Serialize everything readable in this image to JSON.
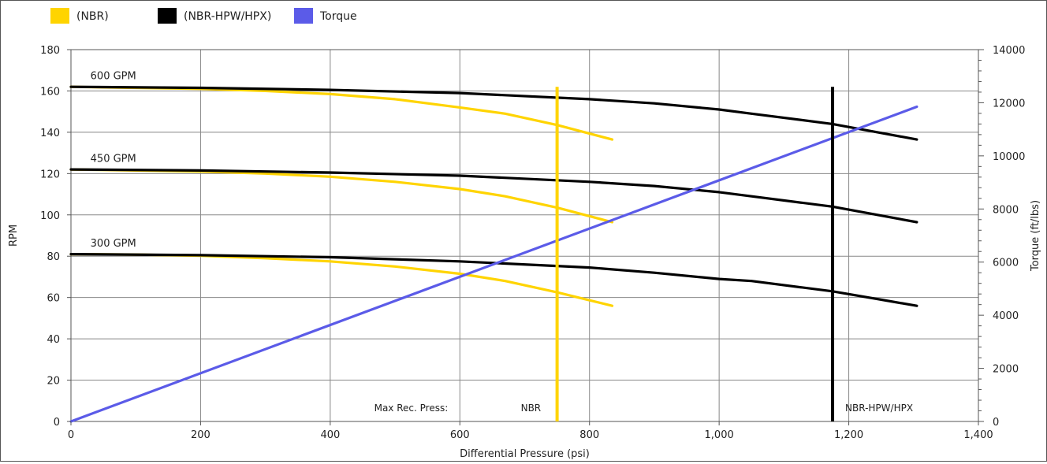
{
  "chart_data": {
    "type": "line",
    "xlabel": "Differential Pressure (psi)",
    "ylabel": "RPM",
    "y2label": "Torque (ft/lbs)",
    "xlim": [
      0,
      1400
    ],
    "ylim": [
      0,
      180
    ],
    "y2lim": [
      0,
      14000
    ],
    "grid": true,
    "legend_position": "top-left",
    "x_ticks": [
      0,
      200,
      400,
      600,
      800,
      1000,
      1200,
      1400
    ],
    "x_tick_labels": [
      "0",
      "200",
      "400",
      "600",
      "800",
      "1,000",
      "1,200",
      "1,400"
    ],
    "y_ticks": [
      0,
      20,
      40,
      60,
      80,
      100,
      120,
      140,
      160,
      180
    ],
    "y_tick_labels": [
      "0",
      "20",
      "40",
      "60",
      "80",
      "100",
      "120",
      "140",
      "160",
      "180"
    ],
    "y2_ticks": [
      0,
      2000,
      4000,
      6000,
      8000,
      10000,
      12000,
      14000
    ],
    "y2_tick_labels": [
      "0",
      "2000",
      "4000",
      "6000",
      "8000",
      "10000",
      "12000",
      "14000"
    ],
    "legend": [
      {
        "label": "(NBR)",
        "color": "#FFD400"
      },
      {
        "label": "(NBR-HPW/HPX)",
        "color": "#000000"
      },
      {
        "label": "Torque",
        "color": "#5B5BE8"
      }
    ],
    "flow_labels": [
      {
        "text": "600 GPM",
        "x": 30,
        "y": 163
      },
      {
        "text": "450 GPM",
        "x": 30,
        "y": 123
      },
      {
        "text": "300 GPM",
        "x": 30,
        "y": 82
      }
    ],
    "series": [
      {
        "name": "(NBR)",
        "flow": "600 GPM",
        "color": "#FFD400",
        "axis": "left",
        "x": [
          0,
          100,
          200,
          300,
          400,
          500,
          600,
          670,
          750,
          835
        ],
        "y": [
          162,
          161.5,
          161,
          160,
          158.5,
          156,
          152,
          149,
          143.5,
          136.5
        ]
      },
      {
        "name": "(NBR)",
        "flow": "450 GPM",
        "color": "#FFD400",
        "axis": "left",
        "x": [
          0,
          100,
          200,
          300,
          400,
          500,
          600,
          670,
          750,
          835
        ],
        "y": [
          122,
          121.5,
          121,
          120,
          118.5,
          116,
          112.5,
          109,
          103.5,
          96.5
        ]
      },
      {
        "name": "(NBR)",
        "flow": "300 GPM",
        "color": "#FFD400",
        "axis": "left",
        "x": [
          0,
          100,
          200,
          300,
          400,
          500,
          600,
          670,
          750,
          835
        ],
        "y": [
          81,
          80.8,
          80.2,
          79,
          77.5,
          75,
          71.5,
          68,
          62.5,
          56
        ]
      },
      {
        "name": "(NBR-HPW/HPX)",
        "flow": "600 GPM",
        "color": "#000000",
        "axis": "left",
        "x": [
          0,
          200,
          400,
          600,
          800,
          900,
          1000,
          1050,
          1175,
          1305
        ],
        "y": [
          162,
          161.5,
          160.5,
          159,
          156,
          154,
          151,
          149,
          144,
          136.5
        ]
      },
      {
        "name": "(NBR-HPW/HPX)",
        "flow": "450 GPM",
        "color": "#000000",
        "axis": "left",
        "x": [
          0,
          200,
          400,
          600,
          800,
          900,
          1000,
          1050,
          1175,
          1305
        ],
        "y": [
          122,
          121.5,
          120.5,
          119,
          116,
          114,
          111,
          109,
          104,
          96.5
        ]
      },
      {
        "name": "(NBR-HPW/HPX)",
        "flow": "300 GPM",
        "color": "#000000",
        "axis": "left",
        "x": [
          0,
          200,
          400,
          600,
          800,
          900,
          1000,
          1050,
          1175,
          1305
        ],
        "y": [
          81,
          80.5,
          79.5,
          77.5,
          74.5,
          72,
          69,
          68,
          63,
          56
        ]
      },
      {
        "name": "Torque",
        "color": "#5B5BE8",
        "axis": "right",
        "x": [
          0,
          1305
        ],
        "y": [
          0,
          11850
        ]
      }
    ],
    "max_pressure_lines": [
      {
        "label": "NBR",
        "x": 750,
        "y_top": 162,
        "color": "#FFD400"
      },
      {
        "label": "NBR-HPW/HPX",
        "x": 1175,
        "y_top": 162,
        "color": "#000000"
      }
    ],
    "max_rec_label": "Max Rec. Press:"
  }
}
